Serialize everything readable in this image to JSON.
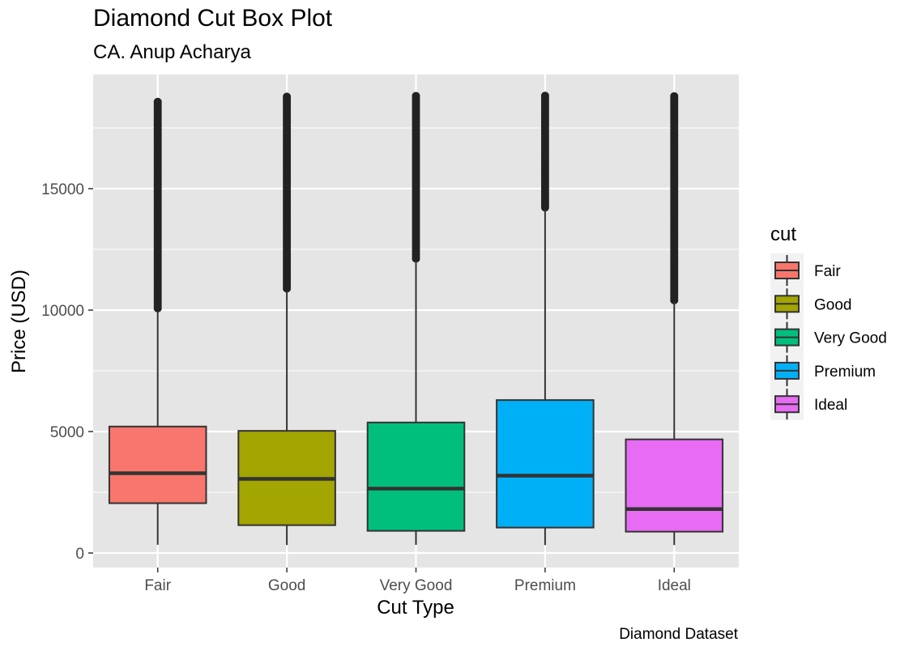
{
  "chart_data": {
    "type": "box",
    "title": "Diamond Cut Box Plot",
    "subtitle": "CA. Anup Acharya",
    "caption": "Diamond Dataset",
    "xlabel": "Cut Type",
    "ylabel": "Price (USD)",
    "ylim": [
      -600,
      19700
    ],
    "yticks": [
      0,
      5000,
      10000,
      15000
    ],
    "ytick_labels": [
      "0",
      "5000",
      "10000",
      "15000"
    ],
    "grid": true,
    "legend": {
      "title": "cut",
      "position": "right"
    },
    "categories": [
      "Fair",
      "Good",
      "Very Good",
      "Premium",
      "Ideal"
    ],
    "boxes": [
      {
        "name": "Fair",
        "color": "#F8766D",
        "min": 337,
        "q1": 2050,
        "median": 3282,
        "q3": 5206,
        "whisker_high": 9950,
        "outlier_low": 10000,
        "outlier_high": 18574
      },
      {
        "name": "Good",
        "color": "#A3A500",
        "min": 327,
        "q1": 1145,
        "median": 3050,
        "q3": 5028,
        "whisker_high": 10800,
        "outlier_low": 10850,
        "outlier_high": 18788
      },
      {
        "name": "Very Good",
        "color": "#00BF7D",
        "min": 336,
        "q1": 912,
        "median": 2648,
        "q3": 5373,
        "whisker_high": 12050,
        "outlier_low": 12100,
        "outlier_high": 18818
      },
      {
        "name": "Premium",
        "color": "#00B0F6",
        "min": 326,
        "q1": 1046,
        "median": 3185,
        "q3": 6296,
        "whisker_high": 14150,
        "outlier_low": 14200,
        "outlier_high": 18823
      },
      {
        "name": "Ideal",
        "color": "#E76BF3",
        "min": 326,
        "q1": 878,
        "median": 1810,
        "q3": 4678,
        "whisker_high": 10350,
        "outlier_low": 10400,
        "outlier_high": 18806
      }
    ]
  },
  "colors": {
    "panel_bg": "#E5E5E5",
    "grid": "#FFFFFF",
    "stroke": "#333333",
    "outlier": "#222222"
  }
}
